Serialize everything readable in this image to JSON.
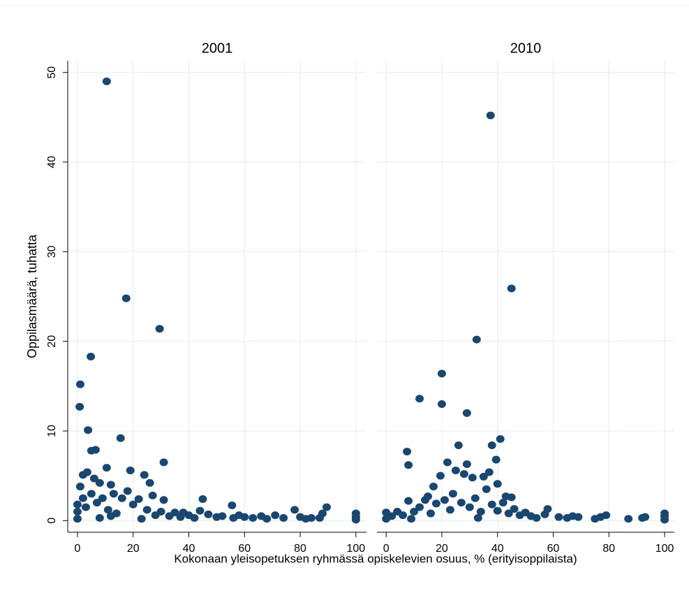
{
  "chart_data": [
    {
      "type": "scatter",
      "title": "2001",
      "ylabel": "Oppilasmäärä, tuhatta",
      "xlabel": "Kokonaan yleisopetuksen ryhmässä opiskelevien osuus, % (erityisoppilaista)",
      "color": "#1a476f",
      "xlim": [
        -3.5,
        103.8
      ],
      "ylim": [
        -1.3,
        51.3
      ],
      "xticks": [
        0,
        20,
        40,
        60,
        80,
        100
      ],
      "yticks": [
        0,
        10,
        20,
        30,
        40,
        50
      ],
      "grid": true,
      "x": [
        10.5,
        17.5,
        29.5,
        4.8,
        1,
        0.8,
        3.8,
        15.5,
        6.5,
        5,
        10.5,
        19,
        31,
        24,
        26,
        2,
        3.5,
        6,
        8,
        12,
        45,
        55.5,
        89.5,
        78,
        0,
        0,
        0,
        1,
        2,
        3,
        5,
        7,
        9,
        11,
        13,
        14,
        16,
        18,
        20,
        22,
        25,
        27,
        28,
        30,
        31,
        33,
        35,
        37,
        40,
        42,
        44,
        47,
        50,
        52,
        56,
        58,
        60,
        63,
        66,
        68,
        71,
        74,
        80,
        82,
        84,
        87,
        88,
        100,
        100,
        100,
        8,
        12,
        23,
        38
      ],
      "values": [
        49,
        24.8,
        21.4,
        18.3,
        15.2,
        12.7,
        10.1,
        9.2,
        7.9,
        7.8,
        5.9,
        5.6,
        6.5,
        5.1,
        4.2,
        5.1,
        5.4,
        4.7,
        4.2,
        4,
        2.4,
        1.7,
        1.5,
        1.2,
        0.2,
        1,
        1.8,
        3.8,
        2.5,
        1.5,
        3,
        2,
        2.5,
        1.2,
        3,
        0.8,
        2.5,
        3.3,
        1.8,
        2.4,
        1.2,
        2.8,
        0.6,
        1,
        2.3,
        0.5,
        0.9,
        0.4,
        0.6,
        0.3,
        1.1,
        0.7,
        0.4,
        0.5,
        0.3,
        0.6,
        0.4,
        0.3,
        0.5,
        0.2,
        0.6,
        0.3,
        0.4,
        0.2,
        0.3,
        0.3,
        0.8,
        0.1,
        0.4,
        0.8,
        0.3,
        0.5,
        0.2,
        0.9
      ]
    },
    {
      "type": "scatter",
      "title": "2010",
      "color": "#1a476f",
      "xlim": [
        -3.3,
        103.5
      ],
      "ylim": [
        -1.3,
        51.3
      ],
      "xticks": [
        0,
        20,
        40,
        60,
        80,
        100
      ],
      "yticks": [
        0,
        10,
        20,
        30,
        40,
        50
      ],
      "grid": true,
      "x": [
        37.5,
        45,
        32.5,
        20,
        12,
        20,
        29,
        41,
        38,
        26,
        7.5,
        8,
        39.5,
        22,
        29,
        25,
        28,
        19.5,
        37,
        35,
        31,
        17,
        40,
        43,
        45,
        15,
        0,
        0,
        2,
        4,
        6,
        8,
        10,
        12,
        14,
        16,
        18,
        21,
        23,
        24,
        27,
        30,
        32,
        34,
        36,
        38,
        40,
        42,
        44,
        46,
        48,
        50,
        52,
        54,
        57,
        58,
        62,
        65,
        67,
        69,
        75,
        77,
        79,
        87,
        92,
        93,
        100,
        100,
        100,
        9,
        33
      ],
      "values": [
        45.2,
        25.9,
        20.2,
        16.4,
        13.6,
        13,
        12,
        9.1,
        8.4,
        8.4,
        7.7,
        6.2,
        6.8,
        6.5,
        6.3,
        5.6,
        5.2,
        5,
        5.4,
        4.9,
        4.8,
        3.8,
        4.1,
        2.7,
        2.6,
        2.7,
        0.2,
        0.9,
        0.5,
        1,
        0.6,
        2.2,
        1,
        1.5,
        2.3,
        0.8,
        1.9,
        2.3,
        1.2,
        3,
        2,
        1.5,
        2.5,
        1,
        3.5,
        1.8,
        1.1,
        2,
        0.8,
        1.3,
        0.6,
        0.9,
        0.5,
        0.3,
        0.7,
        1.3,
        0.4,
        0.3,
        0.5,
        0.4,
        0.2,
        0.4,
        0.6,
        0.2,
        0.3,
        0.4,
        0.1,
        0.5,
        0.8,
        0.2,
        0.3
      ]
    }
  ]
}
